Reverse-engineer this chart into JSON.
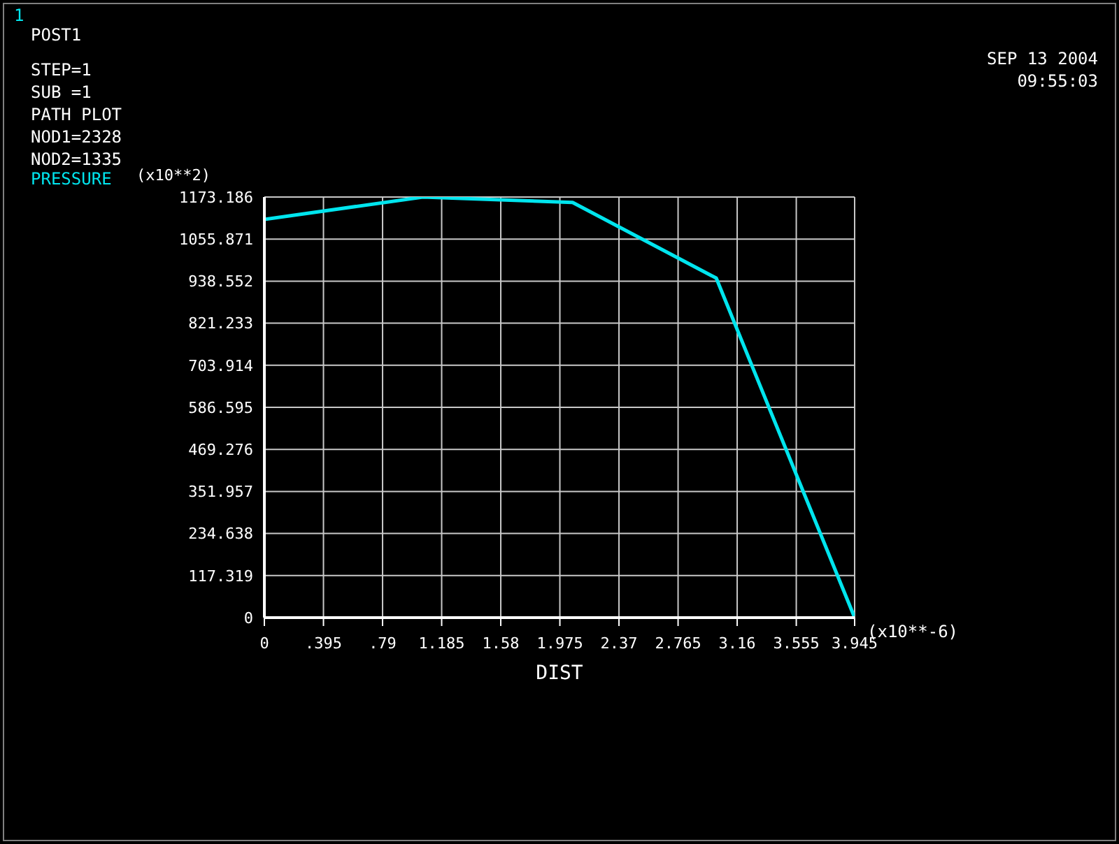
{
  "chart_data": {
    "type": "line",
    "xlabel": "DIST",
    "ylabel": "(x10**2)",
    "x": [
      0,
      1.06,
      2.06,
      3.02,
      3.945
    ],
    "series": [
      {
        "name": "PRESSURE",
        "color": "#00e5ee",
        "values": [
          1111,
          1173,
          1158,
          947,
          0
        ]
      }
    ],
    "xlim": [
      0,
      3.945
    ],
    "xticks": [
      0,
      {
        "value": 0.395,
        "label": ".395"
      },
      {
        "value": 0.79,
        "label": ".79"
      },
      1.185,
      1.58,
      1.975,
      2.37,
      2.765,
      3.16,
      3.555,
      3.945
    ],
    "ylim": [
      0,
      1173.186
    ],
    "yticks": [
      0,
      117.319,
      234.638,
      351.957,
      469.276,
      586.595,
      703.914,
      821.233,
      938.552,
      1055.871,
      1173.186
    ],
    "grid": true,
    "legend": "top left",
    "marker": "none",
    "line_style": "solid",
    "annotations": [
      "1",
      "POST1",
      "STEP=1",
      "SUB =1",
      "PATH PLOT",
      "NOD1=2328",
      "NOD2=1335",
      "SEP 13 2004",
      "09:55:03",
      "(x10**-6)"
    ]
  }
}
